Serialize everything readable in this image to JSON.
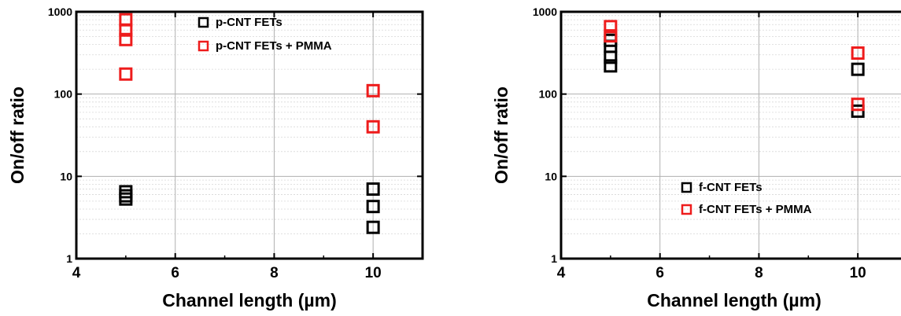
{
  "chart_data": [
    {
      "type": "scatter",
      "xlabel": "Channel length (µm)",
      "ylabel": "On/off ratio",
      "xlim": [
        4,
        11
      ],
      "ylim": [
        1,
        1000
      ],
      "yscale": "log",
      "x_ticks": [
        "4",
        "6",
        "8",
        "10"
      ],
      "y_ticks": [
        "1",
        "10",
        "100",
        "1000"
      ],
      "grid": true,
      "legend_position": "top-right",
      "series": [
        {
          "name": "p-CNT FETs",
          "color": "#000000",
          "marker": "open-square",
          "points": [
            [
              5,
              6.5
            ],
            [
              5,
              5.8
            ],
            [
              5,
              5.3
            ],
            [
              10,
              7.0
            ],
            [
              10,
              4.3
            ],
            [
              10,
              2.4
            ]
          ]
        },
        {
          "name": "p-CNT FETs + PMMA",
          "color": "#ee1c1c",
          "marker": "open-square",
          "points": [
            [
              5,
              800
            ],
            [
              5,
              600
            ],
            [
              5,
              460
            ],
            [
              5,
              175
            ],
            [
              10,
              110
            ],
            [
              10,
              40
            ]
          ]
        }
      ]
    },
    {
      "type": "scatter",
      "xlabel": "Channel length (µm)",
      "ylabel": "On/off ratio",
      "xlim": [
        4,
        11
      ],
      "ylim": [
        1,
        1000
      ],
      "yscale": "log",
      "x_ticks": [
        "4",
        "6",
        "8",
        "10"
      ],
      "y_ticks": [
        "1",
        "10",
        "100",
        "1000"
      ],
      "grid": true,
      "legend_position": "bottom-right",
      "series": [
        {
          "name": "f-CNT FETs",
          "color": "#000000",
          "marker": "open-square",
          "points": [
            [
              5,
              450
            ],
            [
              5,
              380
            ],
            [
              5,
              280
            ],
            [
              5,
              220
            ],
            [
              10,
              200
            ],
            [
              10,
              62
            ]
          ]
        },
        {
          "name": "f-CNT FETs + PMMA",
          "color": "#ee1c1c",
          "marker": "open-square",
          "points": [
            [
              5,
              660
            ],
            [
              5,
              510
            ],
            [
              10,
              315
            ],
            [
              10,
              75
            ]
          ]
        }
      ]
    }
  ]
}
